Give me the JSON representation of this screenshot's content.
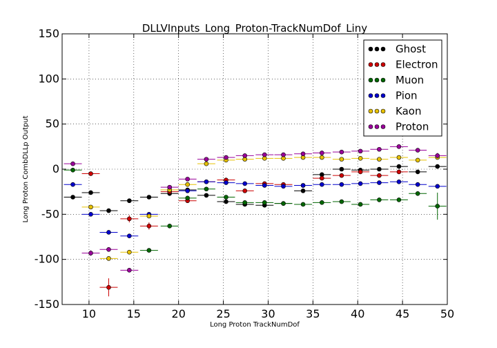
{
  "chart_data": {
    "type": "scatter",
    "title": "DLLVInputs_Long_Proton-TrackNumDof_Liny",
    "xlabel": "Long Proton TrackNumDof",
    "ylabel": "Long Proton CombDLLp Output",
    "xlim": [
      7,
      50
    ],
    "ylim": [
      -150,
      150
    ],
    "xticks": [
      10,
      15,
      20,
      25,
      30,
      35,
      40,
      45,
      50
    ],
    "yticks": [
      -150,
      -100,
      -50,
      0,
      50,
      100,
      150
    ],
    "grid": true,
    "legend_position": "top-right",
    "bin_half_width": 1.0,
    "series": [
      {
        "name": "Ghost",
        "color": "#000000",
        "points": [
          [
            8.2,
            -31
          ],
          [
            10.2,
            -26
          ],
          [
            12.2,
            -46
          ],
          [
            14.5,
            -35
          ],
          [
            16.7,
            -31
          ],
          [
            19.0,
            -27
          ],
          [
            21.0,
            -23
          ],
          [
            23.1,
            -29
          ],
          [
            25.3,
            -36
          ],
          [
            27.4,
            -39
          ],
          [
            29.6,
            -40
          ],
          [
            31.7,
            -38
          ],
          [
            33.9,
            -24
          ],
          [
            36.0,
            -6
          ],
          [
            38.2,
            0
          ],
          [
            40.3,
            -1
          ],
          [
            42.4,
            0
          ],
          [
            44.6,
            3
          ],
          [
            46.7,
            -3
          ],
          [
            48.9,
            3
          ]
        ],
        "errors": [
          0,
          0,
          0,
          0,
          0,
          0,
          0,
          0,
          0,
          0,
          0,
          0,
          0,
          0,
          0,
          0,
          0,
          0,
          0,
          0
        ]
      },
      {
        "name": "Electron",
        "color": "#cc0000",
        "points": [
          [
            10.2,
            -5
          ],
          [
            12.2,
            -131
          ],
          [
            14.5,
            -55
          ],
          [
            16.7,
            -63
          ],
          [
            19.0,
            -25
          ],
          [
            21.0,
            -35
          ],
          [
            23.1,
            -14
          ],
          [
            25.3,
            -12
          ],
          [
            27.4,
            -24
          ],
          [
            29.6,
            -16
          ],
          [
            31.7,
            -17
          ],
          [
            33.9,
            -18
          ],
          [
            36.0,
            -10
          ],
          [
            38.2,
            -7
          ],
          [
            40.3,
            -3
          ],
          [
            42.4,
            -7
          ],
          [
            44.6,
            -3
          ]
        ],
        "errors": [
          2,
          10,
          4,
          4,
          2,
          2,
          1,
          1,
          1,
          1,
          1,
          1,
          1,
          1,
          1,
          1,
          1
        ]
      },
      {
        "name": "Muon",
        "color": "#006600",
        "points": [
          [
            8.2,
            -1
          ],
          [
            16.7,
            -90
          ],
          [
            19.0,
            -63
          ],
          [
            21.0,
            -32
          ],
          [
            23.1,
            -22
          ],
          [
            25.3,
            -31
          ],
          [
            27.4,
            -37
          ],
          [
            29.6,
            -37
          ],
          [
            31.7,
            -38
          ],
          [
            33.9,
            -39
          ],
          [
            36.0,
            -37
          ],
          [
            38.2,
            -36
          ],
          [
            40.3,
            -39
          ],
          [
            42.4,
            -34
          ],
          [
            44.6,
            -34
          ],
          [
            46.7,
            -27
          ],
          [
            48.9,
            -41
          ]
        ],
        "errors": [
          0,
          0,
          0,
          0,
          0,
          0,
          0,
          0,
          0,
          0,
          0,
          0,
          0,
          0,
          0,
          0,
          15
        ]
      },
      {
        "name": "Pion",
        "color": "#0000cc",
        "points": [
          [
            8.2,
            -17
          ],
          [
            10.2,
            -50
          ],
          [
            12.2,
            -70
          ],
          [
            14.5,
            -74
          ],
          [
            16.7,
            -50
          ],
          [
            19.0,
            -23
          ],
          [
            21.0,
            -24
          ],
          [
            23.1,
            -14
          ],
          [
            25.3,
            -15
          ],
          [
            27.4,
            -16
          ],
          [
            29.6,
            -18
          ],
          [
            31.7,
            -19
          ],
          [
            33.9,
            -18
          ],
          [
            36.0,
            -17
          ],
          [
            38.2,
            -17
          ],
          [
            40.3,
            -16
          ],
          [
            42.4,
            -15
          ],
          [
            44.6,
            -14
          ],
          [
            46.7,
            -17
          ],
          [
            48.9,
            -19
          ]
        ],
        "errors": [
          0,
          0,
          0,
          0,
          0,
          0,
          0,
          0,
          0,
          0,
          0,
          0,
          0,
          0,
          0,
          0,
          0,
          0,
          0,
          0
        ]
      },
      {
        "name": "Kaon",
        "color": "#e6c000",
        "points": [
          [
            10.2,
            -42
          ],
          [
            12.2,
            -99
          ],
          [
            14.5,
            -92
          ],
          [
            16.7,
            -52
          ],
          [
            19.0,
            -23
          ],
          [
            21.0,
            -17
          ],
          [
            23.1,
            6
          ],
          [
            25.3,
            10
          ],
          [
            27.4,
            11
          ],
          [
            29.6,
            12
          ],
          [
            31.7,
            12
          ],
          [
            33.9,
            13
          ],
          [
            36.0,
            13
          ],
          [
            38.2,
            11
          ],
          [
            40.3,
            12
          ],
          [
            42.4,
            11
          ],
          [
            44.6,
            13
          ],
          [
            46.7,
            10
          ],
          [
            48.9,
            13
          ]
        ],
        "errors": [
          0,
          0,
          0,
          0,
          0,
          0,
          0,
          0,
          0,
          0,
          0,
          0,
          0,
          0,
          0,
          0,
          0,
          0,
          0
        ]
      },
      {
        "name": "Proton",
        "color": "#990099",
        "points": [
          [
            8.2,
            6
          ],
          [
            10.2,
            -93
          ],
          [
            12.2,
            -89
          ],
          [
            14.5,
            -112
          ],
          [
            19.0,
            -20
          ],
          [
            21.0,
            -11
          ],
          [
            23.1,
            11
          ],
          [
            25.3,
            13
          ],
          [
            27.4,
            15
          ],
          [
            29.6,
            16
          ],
          [
            31.7,
            16
          ],
          [
            33.9,
            17
          ],
          [
            36.0,
            18
          ],
          [
            38.2,
            19
          ],
          [
            40.3,
            20
          ],
          [
            42.4,
            22
          ],
          [
            44.6,
            25
          ],
          [
            46.7,
            21
          ],
          [
            48.9,
            15
          ]
        ],
        "errors": [
          0,
          3,
          0,
          0,
          0,
          0,
          0,
          0,
          0,
          0,
          0,
          0,
          0,
          0,
          0,
          0,
          0,
          0,
          3
        ]
      }
    ]
  }
}
